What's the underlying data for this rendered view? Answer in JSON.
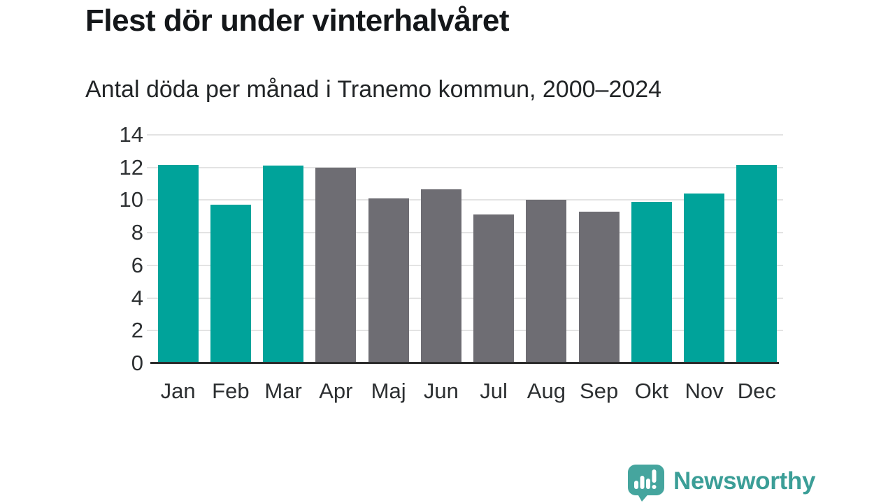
{
  "chart_data": {
    "type": "bar",
    "title": "Flest dör under vinterhalvåret",
    "subtitle": "Antal döda per månad i Tranemo kommun, 2000–2024",
    "categories": [
      "Jan",
      "Feb",
      "Mar",
      "Apr",
      "Maj",
      "Jun",
      "Jul",
      "Aug",
      "Sep",
      "Okt",
      "Nov",
      "Dec"
    ],
    "values": [
      12.15,
      9.7,
      12.1,
      12.0,
      10.1,
      10.65,
      9.1,
      10.0,
      9.3,
      9.9,
      10.4,
      12.15
    ],
    "bar_colors": [
      "#00a39a",
      "#00a39a",
      "#00a39a",
      "#6e6d73",
      "#6e6d73",
      "#6e6d73",
      "#6e6d73",
      "#6e6d73",
      "#6e6d73",
      "#00a39a",
      "#00a39a",
      "#00a39a"
    ],
    "xlabel": "",
    "ylabel": "",
    "ylim": [
      0,
      14
    ],
    "yticks": [
      0,
      2,
      4,
      6,
      8,
      10,
      12,
      14
    ],
    "grid": true,
    "legend": false
  },
  "colors": {
    "highlight_teal": "#00a39a",
    "neutral_gray": "#6e6d73",
    "gridline": "#e3e3e3",
    "axis_line": "#2d2d2d",
    "title_text": "#14171a",
    "logo_teal": "#3b9e97"
  },
  "branding": {
    "logo_icon": "newsworthy-speech-bubble-bar-chart-icon",
    "logo_text": "Newsworthy"
  }
}
